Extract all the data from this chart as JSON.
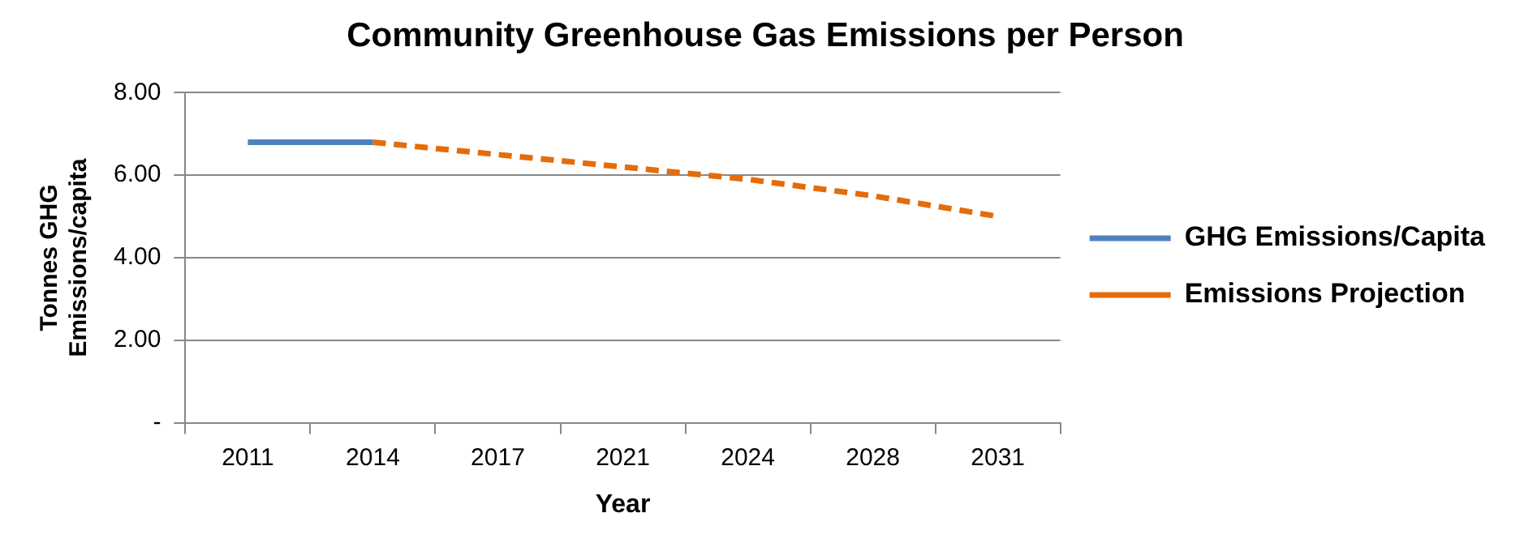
{
  "chart_data": {
    "type": "line",
    "title": "Community Greenhouse Gas Emissions per Person",
    "xlabel": "Year",
    "ylabel": "Tonnes GHG Emissions/capita",
    "categories": [
      "2011",
      "2014",
      "2017",
      "2021",
      "2024",
      "2028",
      "2031"
    ],
    "series": [
      {
        "name": "GHG Emissions/Capita",
        "color": "#4f81bd",
        "line_style": "solid",
        "values": [
          6.8,
          6.8,
          null,
          null,
          null,
          null,
          null
        ]
      },
      {
        "name": "Emissions Projection",
        "color": "#e46c0a",
        "line_style": "dashed",
        "values": [
          null,
          6.8,
          6.5,
          6.2,
          5.9,
          5.5,
          5.0
        ]
      }
    ],
    "ylim": [
      0,
      8
    ],
    "yticks": [
      {
        "value": 0,
        "label": "-"
      },
      {
        "value": 2,
        "label": "2.00"
      },
      {
        "value": 4,
        "label": "4.00"
      },
      {
        "value": 6,
        "label": "6.00"
      },
      {
        "value": 8,
        "label": "8.00"
      }
    ],
    "grid": "y",
    "legend": "right",
    "marker": "none"
  }
}
